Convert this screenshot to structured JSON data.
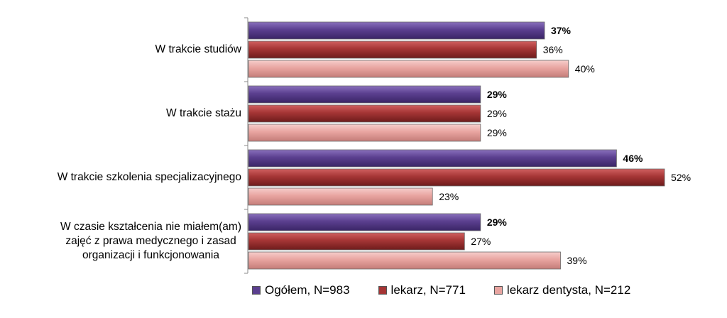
{
  "chart_data": {
    "type": "bar",
    "orientation": "horizontal",
    "categories": [
      "W trakcie studiów",
      "W trakcie stażu",
      "W trakcie szkolenia specjalizacyjnego",
      "W czasie kształcenia nie miałem(am)\nzajęć z prawa medycznego i zasad\norganizacji  i funkcjonowania"
    ],
    "series": [
      {
        "name": "Ogółem, N=983",
        "values": [
          37,
          29,
          46,
          29
        ],
        "color": "#5b3f8f",
        "bold_labels": true
      },
      {
        "name": "lekarz, N=771",
        "values": [
          36,
          29,
          52,
          27
        ],
        "color": "#a53535",
        "bold_labels": false
      },
      {
        "name": "lekarz dentysta, N=212",
        "values": [
          40,
          29,
          23,
          39
        ],
        "color": "#e8a4a0",
        "bold_labels": false
      }
    ],
    "value_suffix": "%",
    "xlim": [
      0,
      100
    ],
    "legend_position": "bottom",
    "grid": false
  }
}
